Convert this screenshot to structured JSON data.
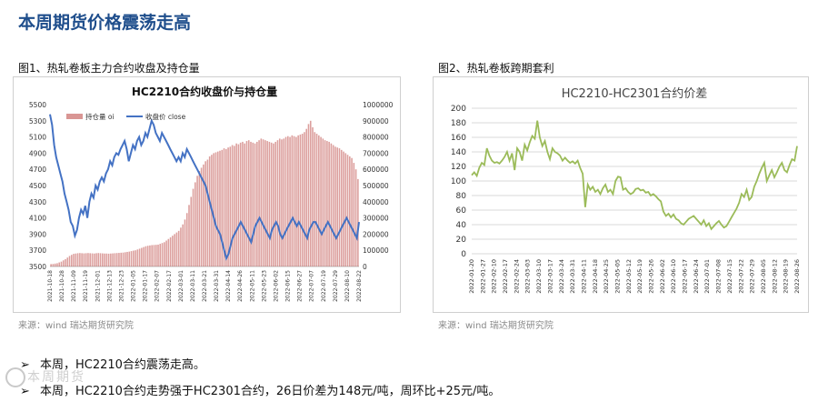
{
  "page": {
    "title": "本周期货价格震荡走高",
    "watermark": "本周期货"
  },
  "figure1": {
    "caption": "图1、热轧卷板主力合约收盘及持仓量",
    "source": "来源：wind   瑞达期货研究院"
  },
  "figure2": {
    "caption": "图2、热轧卷板跨期套利",
    "source": "来源：wind   瑞达期货研究院"
  },
  "bullets": [
    "本周，HC2210合约震荡走高。",
    "本周，HC2210合约走势强于HC2301合约，26日价差为148元/吨，周环比+25元/吨。"
  ],
  "colors": {
    "title": "#1f4e8c",
    "bar": "#c0504d",
    "line": "#4472c4",
    "spread": "#9bbb59",
    "grid": "#d9d9d9"
  },
  "chart_data": [
    {
      "type": "bar+line",
      "title": "HC2210合约收盘价与持仓量",
      "x_ticks": [
        "2021-10-18",
        "2021-10-28",
        "2021-11-09",
        "2021-11-19",
        "2021-12-01",
        "2021-12-13",
        "2021-12-23",
        "2022-01-05",
        "2022-01-17",
        "2022-02-07",
        "2022-02-17",
        "2022-03-01",
        "2022-03-11",
        "2022-03-21",
        "2022-03-31",
        "2022-04-14",
        "2022-04-26",
        "2022-05-11",
        "2022-05-23",
        "2022-06-02",
        "2022-06-15",
        "2022-06-27",
        "2022-07-07",
        "2022-07-19",
        "2022-07-29",
        "2022-08-10",
        "2022-08-22"
      ],
      "y_left": {
        "ticks": [
          3500,
          3700,
          3900,
          4100,
          4300,
          4500,
          4700,
          4900,
          5100,
          5300,
          5500
        ],
        "range": [
          3500,
          5500
        ]
      },
      "y_right": {
        "ticks": [
          0,
          100000,
          200000,
          300000,
          400000,
          500000,
          600000,
          700000,
          800000,
          900000,
          1000000
        ],
        "range": [
          0,
          1000000
        ]
      },
      "series": [
        {
          "name": "持仓量 oi",
          "type": "bar",
          "axis": "right",
          "values": [
            15000,
            16000,
            18000,
            20000,
            25000,
            30000,
            38000,
            45000,
            55000,
            65000,
            72000,
            78000,
            80000,
            82000,
            83000,
            82000,
            81000,
            82000,
            83000,
            82000,
            81000,
            80000,
            82000,
            83000,
            82000,
            81000,
            80000,
            80000,
            79000,
            80000,
            81000,
            82000,
            83000,
            84000,
            85000,
            86000,
            88000,
            90000,
            92000,
            95000,
            98000,
            100000,
            105000,
            110000,
            115000,
            120000,
            125000,
            128000,
            130000,
            132000,
            133000,
            134000,
            135000,
            140000,
            145000,
            150000,
            160000,
            170000,
            180000,
            190000,
            200000,
            210000,
            220000,
            240000,
            260000,
            290000,
            330000,
            380000,
            430000,
            480000,
            520000,
            560000,
            590000,
            610000,
            630000,
            650000,
            660000,
            680000,
            690000,
            700000,
            705000,
            710000,
            715000,
            720000,
            730000,
            725000,
            735000,
            740000,
            750000,
            745000,
            760000,
            755000,
            765000,
            770000,
            760000,
            775000,
            780000,
            770000,
            765000,
            760000,
            770000,
            780000,
            790000,
            785000,
            780000,
            775000,
            770000,
            765000,
            760000,
            770000,
            780000,
            790000,
            785000,
            790000,
            800000,
            805000,
            800000,
            810000,
            805000,
            800000,
            810000,
            815000,
            820000,
            830000,
            850000,
            880000,
            900000,
            860000,
            830000,
            820000,
            810000,
            800000,
            790000,
            780000,
            775000,
            770000,
            760000,
            750000,
            740000,
            735000,
            730000,
            720000,
            710000,
            700000,
            690000,
            680000,
            670000,
            640000,
            600000,
            540000
          ]
        },
        {
          "name": "收盘价 close",
          "type": "line",
          "axis": "left",
          "values": [
            5380,
            5250,
            5000,
            4850,
            4750,
            4650,
            4550,
            4400,
            4300,
            4200,
            4050,
            4000,
            3880,
            3950,
            4100,
            4200,
            4150,
            4250,
            4100,
            4300,
            4400,
            4350,
            4500,
            4450,
            4550,
            4600,
            4550,
            4650,
            4700,
            4800,
            4750,
            4850,
            4900,
            4880,
            4950,
            5000,
            5050,
            4950,
            4800,
            4900,
            5000,
            4950,
            5050,
            5100,
            5000,
            5050,
            5150,
            5100,
            5200,
            5300,
            5250,
            5150,
            5100,
            5050,
            5150,
            5100,
            5050,
            5000,
            4950,
            4900,
            4850,
            4800,
            4850,
            4800,
            4900,
            4850,
            4950,
            4900,
            4850,
            4800,
            4750,
            4700,
            4650,
            4600,
            4550,
            4500,
            4400,
            4300,
            4200,
            4100,
            4000,
            3950,
            3900,
            3800,
            3700,
            3600,
            3650,
            3750,
            3850,
            3900,
            3950,
            4000,
            4050,
            4000,
            3950,
            3900,
            3850,
            3800,
            3900,
            4000,
            4050,
            4100,
            4050,
            4000,
            3950,
            3900,
            3850,
            3950,
            4000,
            4050,
            4000,
            3900,
            3850,
            3900,
            3950,
            4000,
            4050,
            4100,
            4050,
            4000,
            4050,
            4000,
            3950,
            3900,
            3850,
            3950,
            4000,
            4050,
            4050,
            4000,
            3950,
            3900,
            3950,
            4000,
            4050,
            4000,
            3950,
            3900,
            3850,
            3900,
            3950,
            4000,
            4050,
            4100,
            4050,
            4000,
            3950,
            3900,
            3850,
            4050
          ]
        }
      ]
    },
    {
      "type": "line",
      "title": "HC2210-HC2301合约价差",
      "x_ticks": [
        "2022-01-20",
        "2022-01-27",
        "2022-02-10",
        "2022-02-17",
        "2022-02-24",
        "2022-03-03",
        "2022-03-10",
        "2022-03-17",
        "2022-03-24",
        "2022-03-31",
        "2022-04-11",
        "2022-04-18",
        "2022-04-25",
        "2022-05-05",
        "2022-05-12",
        "2022-05-19",
        "2022-05-26",
        "2022-06-02",
        "2022-06-10",
        "2022-06-17",
        "2022-06-24",
        "2022-07-01",
        "2022-07-08",
        "2022-07-15",
        "2022-07-22",
        "2022-07-29",
        "2022-08-05",
        "2022-08-12",
        "2022-08-19",
        "2022-08-26"
      ],
      "y": {
        "ticks": [
          0,
          20,
          40,
          60,
          80,
          100,
          120,
          140,
          160,
          180,
          200
        ],
        "range": [
          0,
          200
        ]
      },
      "series": [
        {
          "name": "",
          "values": [
            108,
            112,
            107,
            118,
            125,
            122,
            145,
            135,
            128,
            125,
            126,
            124,
            128,
            133,
            140,
            128,
            138,
            115,
            145,
            140,
            128,
            150,
            142,
            153,
            162,
            158,
            183,
            160,
            148,
            155,
            140,
            130,
            145,
            140,
            138,
            135,
            128,
            132,
            128,
            125,
            127,
            124,
            128,
            118,
            110,
            64,
            95,
            88,
            92,
            85,
            88,
            82,
            90,
            95,
            85,
            88,
            82,
            100,
            106,
            105,
            88,
            90,
            85,
            82,
            84,
            89,
            90,
            87,
            88,
            84,
            85,
            80,
            82,
            79,
            75,
            72,
            58,
            52,
            55,
            50,
            54,
            48,
            46,
            42,
            40,
            44,
            48,
            50,
            52,
            48,
            44,
            40,
            46,
            38,
            42,
            34,
            38,
            42,
            45,
            40,
            36,
            38,
            44,
            50,
            56,
            62,
            70,
            82,
            78,
            88,
            74,
            78,
            92,
            100,
            110,
            118,
            125,
            100,
            108,
            115,
            105,
            112,
            120,
            125,
            115,
            112,
            122,
            130,
            128,
            148
          ]
        }
      ]
    }
  ]
}
